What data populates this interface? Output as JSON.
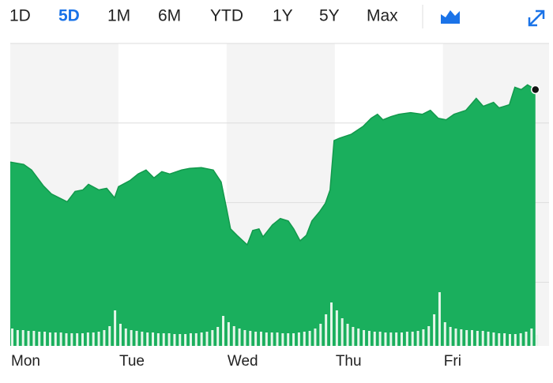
{
  "tabs": {
    "items": [
      "1D",
      "5D",
      "1M",
      "6M",
      "YTD",
      "1Y",
      "5Y",
      "Max"
    ],
    "active": 1
  },
  "chart_data": {
    "type": "area",
    "color": "#1aaf5d",
    "line_color": "#12994c",
    "x": [
      0,
      0.124,
      0.197,
      0.307,
      0.38,
      0.453,
      0.526,
      0.599,
      0.672,
      0.723,
      0.818,
      0.891,
      0.964,
      1.0,
      1.109,
      1.182,
      1.255,
      1.328,
      1.401,
      1.474,
      1.584,
      1.657,
      1.766,
      1.876,
      1.949,
      2.0,
      2.036,
      2.095,
      2.19,
      2.241,
      2.299,
      2.336,
      2.423,
      2.496,
      2.569,
      2.62,
      2.679,
      2.737,
      2.788,
      2.861,
      2.912,
      2.956,
      2.993,
      3.044,
      3.153,
      3.263,
      3.336,
      3.394,
      3.445,
      3.518,
      3.591,
      3.701,
      3.81,
      3.883,
      3.956,
      4.029,
      4.102,
      4.212,
      4.307,
      4.372,
      4.467,
      4.518,
      4.613,
      4.664,
      4.723,
      4.781,
      4.854
    ],
    "values": [
      2.51,
      2.48,
      2.41,
      2.21,
      2.11,
      2.06,
      2.01,
      2.14,
      2.16,
      2.23,
      2.16,
      2.18,
      2.06,
      2.2,
      2.28,
      2.36,
      2.41,
      2.31,
      2.39,
      2.36,
      2.41,
      2.43,
      2.44,
      2.41,
      2.26,
      1.92,
      1.67,
      1.59,
      1.47,
      1.65,
      1.67,
      1.57,
      1.72,
      1.8,
      1.77,
      1.67,
      1.52,
      1.59,
      1.77,
      1.89,
      1.99,
      2.16,
      2.78,
      2.81,
      2.86,
      2.96,
      3.06,
      3.11,
      3.04,
      3.08,
      3.11,
      3.13,
      3.11,
      3.16,
      3.06,
      3.04,
      3.11,
      3.16,
      3.31,
      3.21,
      3.26,
      3.19,
      3.23,
      3.45,
      3.42,
      3.48,
      3.42
    ],
    "xlim": [
      0,
      4.98
    ],
    "ylim": [
      0.2,
      4
    ],
    "ygrid": [
      1,
      2,
      3
    ],
    "xticks": [
      {
        "value": 0,
        "label": "Mon"
      },
      {
        "value": 1,
        "label": "Tue"
      },
      {
        "value": 2,
        "label": "Wed"
      },
      {
        "value": 3,
        "label": "Thu"
      },
      {
        "value": 4,
        "label": "Fri"
      }
    ],
    "volume": {
      "color": "#e4f6e9",
      "ylim": [
        0,
        100
      ],
      "x": [
        0,
        0.05,
        0.1,
        0.15,
        0.2,
        0.25,
        0.3,
        0.35,
        0.4,
        0.45,
        0.5,
        0.55,
        0.6,
        0.65,
        0.7,
        0.75,
        0.8,
        0.85,
        0.9,
        0.95,
        1,
        1.05,
        1.1,
        1.15,
        1.2,
        1.25,
        1.3,
        1.35,
        1.4,
        1.45,
        1.5,
        1.55,
        1.6,
        1.65,
        1.7,
        1.75,
        1.8,
        1.85,
        1.9,
        1.95,
        2,
        2.05,
        2.1,
        2.15,
        2.2,
        2.25,
        2.3,
        2.35,
        2.4,
        2.45,
        2.5,
        2.55,
        2.6,
        2.65,
        2.7,
        2.75,
        2.8,
        2.85,
        2.9,
        2.95,
        3,
        3.05,
        3.1,
        3.15,
        3.2,
        3.25,
        3.3,
        3.35,
        3.4,
        3.45,
        3.5,
        3.55,
        3.6,
        3.65,
        3.7,
        3.75,
        3.8,
        3.85,
        3.9,
        3.95,
        4,
        4.05,
        4.1,
        4.15,
        4.2,
        4.25,
        4.3,
        4.35,
        4.4,
        4.45,
        4.5,
        4.55,
        4.6,
        4.65,
        4.7,
        4.75,
        4.8,
        4.85
      ],
      "values": [
        22,
        20,
        20,
        19,
        19,
        18,
        18,
        17,
        17,
        17,
        16,
        16,
        16,
        16,
        17,
        17,
        18,
        20,
        25,
        45,
        28,
        22,
        20,
        19,
        18,
        17,
        17,
        16,
        16,
        16,
        15,
        15,
        15,
        16,
        16,
        17,
        18,
        20,
        24,
        38,
        30,
        25,
        22,
        20,
        19,
        18,
        18,
        17,
        17,
        17,
        16,
        16,
        16,
        17,
        18,
        19,
        22,
        28,
        40,
        55,
        45,
        35,
        28,
        24,
        22,
        20,
        19,
        18,
        18,
        17,
        17,
        17,
        17,
        18,
        18,
        19,
        21,
        25,
        40,
        68,
        30,
        24,
        22,
        21,
        20,
        20,
        19,
        19,
        18,
        17,
        16,
        16,
        15,
        15,
        16,
        18,
        22,
        14
      ]
    }
  }
}
